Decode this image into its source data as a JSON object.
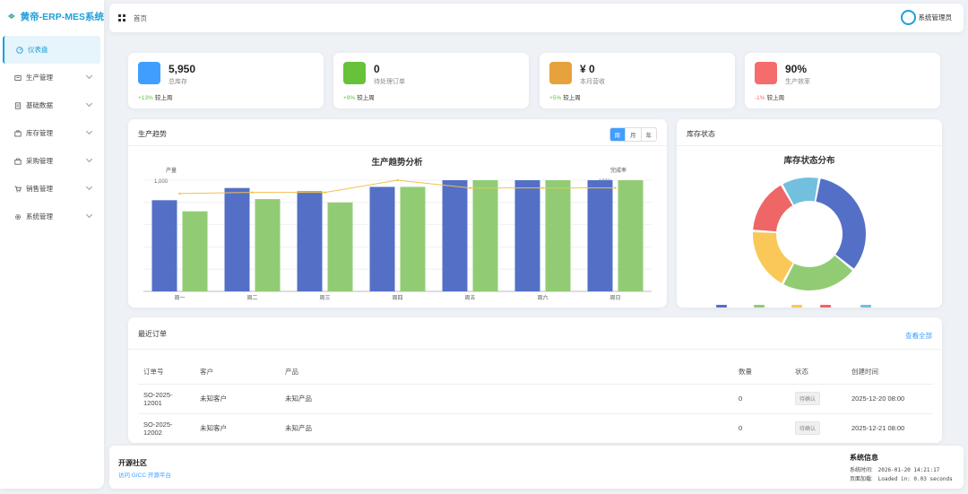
{
  "app": {
    "title": "黄帝-ERP-MES系统"
  },
  "sidebar": {
    "items": [
      {
        "label": "仪表盘",
        "icon": "dashboard-icon",
        "active": true
      },
      {
        "label": "生产管理",
        "icon": "production-icon"
      },
      {
        "label": "基础数据",
        "icon": "document-icon"
      },
      {
        "label": "库存管理",
        "icon": "inventory-icon"
      },
      {
        "label": "采购管理",
        "icon": "purchase-icon"
      },
      {
        "label": "销售管理",
        "icon": "cart-icon"
      },
      {
        "label": "系统管理",
        "icon": "gear-icon"
      }
    ]
  },
  "header": {
    "breadcrumb": "首页",
    "user": "系统管理员"
  },
  "stats": [
    {
      "value": "5,950",
      "label": "总库存",
      "change": "+13%",
      "compare": "较上周",
      "color": "#409eff",
      "trend": "up"
    },
    {
      "value": "0",
      "label": "待处理订单",
      "change": "+9%",
      "compare": "较上周",
      "color": "#67c23a",
      "trend": "up"
    },
    {
      "value": "¥ 0",
      "label": "本月营收",
      "change": "+5%",
      "compare": "较上周",
      "color": "#e6a23c",
      "trend": "up"
    },
    {
      "value": "90%",
      "label": "生产效率",
      "change": "-1%",
      "compare": "较上周",
      "color": "#f56c6c",
      "trend": "down"
    }
  ],
  "trend": {
    "title": "生产趋势",
    "periods": [
      "周",
      "月",
      "年"
    ]
  },
  "stock": {
    "title": "库存状态"
  },
  "orders": {
    "title": "最近订单",
    "view_all": "查看全部",
    "columns": [
      "订单号",
      "客户",
      "产品",
      "数量",
      "状态",
      "创建时间"
    ],
    "rows": [
      {
        "id_line1": "SO-2025-",
        "id_line2": "12001",
        "customer": "未知客户",
        "product": "未知产品",
        "qty": "0",
        "status": "待确认",
        "created": "2025-12-20 08:00"
      },
      {
        "id_line1": "SO-2025-",
        "id_line2": "12002",
        "customer": "未知客户",
        "product": "未知产品",
        "qty": "0",
        "status": "待确认",
        "created": "2025-12-21 08:00"
      }
    ]
  },
  "footer": {
    "community_title": "开源社区",
    "community_link": "访问 GICC 开源平台",
    "sys_title": "系统信息",
    "sys_time_label": "系统时间:",
    "sys_time": "2026-01-20 14:21:17",
    "page_load_label": "页面加载:",
    "page_load": "Loaded in: 0.03 seconds"
  },
  "chart_data": [
    {
      "type": "bar",
      "title": "生产趋势分析",
      "ylabel": "产量",
      "y2label": "完成率",
      "categories": [
        "周一",
        "周二",
        "周三",
        "周四",
        "周五",
        "周六",
        "周日"
      ],
      "ylim": [
        0,
        1000
      ],
      "yticks": [
        "1,000"
      ],
      "y2ticks": [
        "100%"
      ],
      "series": [
        {
          "kind": "bar",
          "color": "#5470c6",
          "values": [
            820,
            930,
            900,
            940,
            1000,
            1000,
            1000
          ]
        },
        {
          "kind": "bar",
          "color": "#91cc75",
          "values": [
            720,
            830,
            800,
            940,
            1000,
            1000,
            1000
          ]
        },
        {
          "kind": "line",
          "color": "#f2c14e",
          "axis": "right",
          "values": [
            88,
            89,
            89,
            100,
            93,
            93,
            93
          ]
        }
      ]
    },
    {
      "type": "pie",
      "title": "库存状态分布",
      "donut": true,
      "slices": [
        {
          "value": 33,
          "color": "#5470c6"
        },
        {
          "value": 22,
          "color": "#91cc75"
        },
        {
          "value": 18,
          "color": "#fac858"
        },
        {
          "value": 16,
          "color": "#ee6666"
        },
        {
          "value": 11,
          "color": "#73c0de"
        }
      ]
    }
  ]
}
